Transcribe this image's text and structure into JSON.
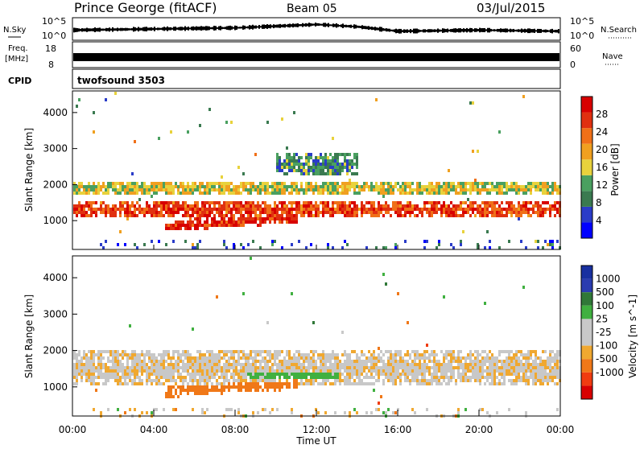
{
  "header": {
    "station": "Prince George (fitACF)",
    "beam": "Beam 05",
    "date": "03/Jul/2015"
  },
  "strip_labels": {
    "nsky": "N.Sky",
    "nsky_ticks": [
      "10^5",
      "10^0"
    ],
    "freq_line1": "Freq.",
    "freq_line2": "[MHz]",
    "freq_ticks": [
      "18",
      "8"
    ],
    "nsearch": "N.Search",
    "nsearch_ticks": [
      "10^5",
      "10^0"
    ],
    "nave": "Nave",
    "nave_ticks": [
      "60",
      "0"
    ],
    "cpid": "CPID",
    "cpid_value": "twofsound 3503"
  },
  "axes": {
    "ylabel": "Slant Range [km]",
    "yticks": [
      "1000",
      "2000",
      "3000",
      "4000"
    ],
    "xlabel": "Time UT",
    "xticks": [
      "00:00",
      "04:00",
      "08:00",
      "12:00",
      "16:00",
      "20:00",
      "00:00"
    ]
  },
  "colors": {
    "power": [
      "#0000ff",
      "#2a3cc8",
      "#3a7a50",
      "#4aa060",
      "#e8d23c",
      "#f0a020",
      "#f07018",
      "#e03010",
      "#d80000"
    ],
    "velocity": [
      "#d80000",
      "#f03c10",
      "#f07818",
      "#f0a830",
      "#c8c8c8",
      "#c8c8c8",
      "#40b040",
      "#307838",
      "#2a3cb0",
      "#1830a0"
    ],
    "ground_scatter": "#b8b8b8"
  },
  "chart_data": [
    {
      "type": "heatmap",
      "title": "Power",
      "xlabel": "Time UT",
      "ylabel": "Slant Range [km]",
      "xlim": [
        0,
        24
      ],
      "ylim": [
        200,
        4600
      ],
      "colorbar": {
        "label": "Power [dB]",
        "ticks": [
          "4",
          "8",
          "12",
          "16",
          "20",
          "24",
          "28"
        ],
        "range": [
          0,
          32
        ]
      },
      "regions": [
        {
          "name": "main band",
          "t_start": 0,
          "t_end": 24,
          "range_center_km": 1350,
          "range_halfwidth_km": 250,
          "value_db": 26
        },
        {
          "name": "upper band",
          "t_start": 0,
          "t_end": 24,
          "range_center_km": 1950,
          "range_halfwidth_km": 200,
          "value_db": 16
        },
        {
          "name": "dayside low band",
          "t_start": 4.5,
          "t_end": 11,
          "range_center_km": 900,
          "range_halfwidth_km": 150,
          "value_db": 28
        },
        {
          "name": "midday patch",
          "t_start": 10,
          "t_end": 14,
          "range_center_km": 2600,
          "range_halfwidth_km": 300,
          "value_db": 10
        }
      ]
    },
    {
      "type": "heatmap",
      "title": "Velocity",
      "xlabel": "Time UT",
      "ylabel": "Slant Range [km]",
      "xlim": [
        0,
        24
      ],
      "ylim": [
        200,
        4600
      ],
      "colorbar": {
        "label": "Velocity [m s^-1]",
        "ticks": [
          "1000",
          "500",
          "100",
          "25",
          "-25",
          "-100",
          "-500",
          "-1000"
        ],
        "range": [
          -1000,
          1000
        ]
      },
      "regions": [
        {
          "name": "ground scatter band",
          "t_start": 0,
          "t_end": 24,
          "range_center_km": 1550,
          "range_halfwidth_km": 500,
          "value_ms": 0
        },
        {
          "name": "dayside low band",
          "t_start": 4.5,
          "t_end": 11,
          "range_center_km": 900,
          "range_halfwidth_km": 150,
          "value_ms": -300
        },
        {
          "name": "midday positive patch",
          "t_start": 8.5,
          "t_end": 13,
          "range_center_km": 1400,
          "range_halfwidth_km": 250,
          "value_ms": 150
        }
      ]
    },
    {
      "type": "line",
      "title": "N.Sky / N.Search",
      "xlim": [
        0,
        24
      ],
      "x": [
        0,
        4,
        8,
        12,
        14,
        16,
        20,
        24
      ],
      "y": [
        0.45,
        0.5,
        0.55,
        0.7,
        0.6,
        0.4,
        0.45,
        0.4
      ]
    }
  ]
}
